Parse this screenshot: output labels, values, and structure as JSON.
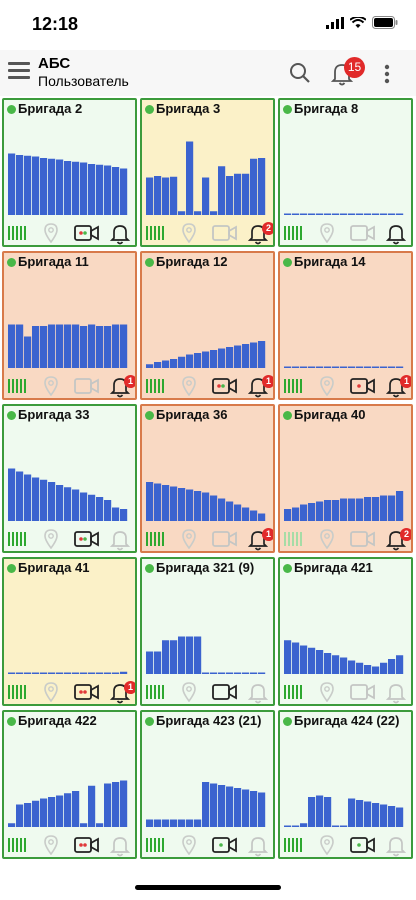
{
  "status_bar": {
    "time": "12:18"
  },
  "app_bar": {
    "title": "АБС",
    "subtitle": "Пользователь",
    "notifications_count": "15",
    "menu_icon": "hamburger-menu-icon",
    "search_icon": "search-icon",
    "bell_icon": "bell-icon",
    "more_icon": "more-vertical-icon"
  },
  "colors": {
    "green_tile_bg": "#effaef",
    "yellow_tile_bg": "#fbf1c8",
    "orange_tile_bg": "#f9d9c3",
    "chart_bar": "#3b63cf",
    "status_online": "#49b848",
    "badge_red": "#e12a2a"
  },
  "tiles": [
    {
      "name": "Бригада 2",
      "state": "green",
      "battery": "full",
      "pin_active": false,
      "camera": "active",
      "camera_light": "red-green",
      "bell_active": true,
      "bell_badge": ""
    },
    {
      "name": "Бригада 3",
      "state": "yellow",
      "battery": "full",
      "pin_active": false,
      "camera": "inactive",
      "camera_light": "none",
      "bell_active": true,
      "bell_badge": "2"
    },
    {
      "name": "Бригада 8",
      "state": "green",
      "battery": "full",
      "pin_active": false,
      "camera": "inactive",
      "camera_light": "none",
      "bell_active": true,
      "bell_badge": ""
    },
    {
      "name": "Бригада 11",
      "state": "orange",
      "battery": "full",
      "pin_active": false,
      "camera": "inactive",
      "camera_light": "none",
      "bell_active": true,
      "bell_badge": "1"
    },
    {
      "name": "Бригада 12",
      "state": "orange",
      "battery": "full",
      "pin_active": false,
      "camera": "active",
      "camera_light": "red-green",
      "bell_active": true,
      "bell_badge": "1"
    },
    {
      "name": "Бригада 14",
      "state": "orange",
      "battery": "full",
      "pin_active": false,
      "camera": "active",
      "camera_light": "red",
      "bell_active": true,
      "bell_badge": "1"
    },
    {
      "name": "Бригада 33",
      "state": "green",
      "battery": "full",
      "pin_active": false,
      "camera": "active",
      "camera_light": "red-green",
      "bell_active": false,
      "bell_badge": ""
    },
    {
      "name": "Бригада 36",
      "state": "orange",
      "battery": "full",
      "pin_active": false,
      "camera": "inactive",
      "camera_light": "none",
      "bell_active": true,
      "bell_badge": "1"
    },
    {
      "name": "Бригада 40",
      "state": "orange",
      "battery": "dim",
      "pin_active": false,
      "camera": "inactive",
      "camera_light": "none",
      "bell_active": true,
      "bell_badge": "2"
    },
    {
      "name": "Бригада 41",
      "state": "yellow",
      "battery": "full",
      "pin_active": false,
      "camera": "active",
      "camera_light": "red-red",
      "bell_active": true,
      "bell_badge": "1"
    },
    {
      "name": "Бригада 321 (9)",
      "state": "green",
      "battery": "full",
      "pin_active": false,
      "camera": "active",
      "camera_light": "none",
      "bell_active": false,
      "bell_badge": ""
    },
    {
      "name": "Бригада 421",
      "state": "green",
      "battery": "full",
      "pin_active": false,
      "camera": "inactive",
      "camera_light": "none",
      "bell_active": false,
      "bell_badge": ""
    },
    {
      "name": "Бригада 422",
      "state": "green",
      "battery": "full",
      "pin_active": false,
      "camera": "active",
      "camera_light": "red-red",
      "bell_active": false,
      "bell_badge": ""
    },
    {
      "name": "Бригада 423 (21)",
      "state": "green",
      "battery": "full",
      "pin_active": false,
      "camera": "active",
      "camera_light": "green",
      "bell_active": false,
      "bell_badge": ""
    },
    {
      "name": "Бригада 424 (22)",
      "state": "green",
      "battery": "full",
      "pin_active": false,
      "camera": "active",
      "camera_light": "green",
      "bell_active": false,
      "bell_badge": ""
    }
  ],
  "chart_data": [
    {
      "type": "bar",
      "values": [
        0.82,
        0.8,
        0.79,
        0.78,
        0.76,
        0.75,
        0.74,
        0.72,
        0.71,
        0.7,
        0.68,
        0.67,
        0.66,
        0.64,
        0.62
      ]
    },
    {
      "type": "bar",
      "values": [
        0.5,
        0.52,
        0.5,
        0.51,
        0.05,
        0.98,
        0.05,
        0.5,
        0.05,
        0.65,
        0.52,
        0.55,
        0.55,
        0.75,
        0.76
      ]
    },
    {
      "type": "bar",
      "values": [
        0,
        0,
        0,
        0,
        0,
        0,
        0.02,
        0.02,
        0.02,
        0.02,
        0.02,
        0.02,
        0.02,
        0.02,
        0.02
      ]
    },
    {
      "type": "bar",
      "values": [
        0.58,
        0.58,
        0.42,
        0.56,
        0.56,
        0.58,
        0.58,
        0.58,
        0.58,
        0.56,
        0.58,
        0.56,
        0.56,
        0.58,
        0.58
      ]
    },
    {
      "type": "bar",
      "values": [
        0.05,
        0.08,
        0.1,
        0.12,
        0.15,
        0.18,
        0.2,
        0.22,
        0.24,
        0.26,
        0.28,
        0.3,
        0.32,
        0.34,
        0.36
      ]
    },
    {
      "type": "bar",
      "values": [
        0.02,
        0.02,
        0.02,
        0.02,
        0.02,
        0.02,
        0.02,
        0.02,
        0.02,
        0.02,
        0.02,
        0.02,
        0.02,
        0.02,
        0.02
      ]
    },
    {
      "type": "bar",
      "values": [
        0.7,
        0.66,
        0.62,
        0.58,
        0.55,
        0.52,
        0.48,
        0.45,
        0.42,
        0.38,
        0.35,
        0.32,
        0.28,
        0.18,
        0.16
      ]
    },
    {
      "type": "bar",
      "values": [
        0.52,
        0.5,
        0.48,
        0.46,
        0.44,
        0.42,
        0.4,
        0.38,
        0.34,
        0.3,
        0.26,
        0.22,
        0.18,
        0.14,
        0.1
      ]
    },
    {
      "type": "bar",
      "values": [
        0.16,
        0.18,
        0.22,
        0.24,
        0.26,
        0.28,
        0.28,
        0.3,
        0.3,
        0.3,
        0.32,
        0.32,
        0.34,
        0.34,
        0.4
      ]
    },
    {
      "type": "bar",
      "values": [
        0.02,
        0.02,
        0.02,
        0.02,
        0.02,
        0.02,
        0.02,
        0.02,
        0.02,
        0.02,
        0.02,
        0.02,
        0.02,
        0.02,
        0.03
      ]
    },
    {
      "type": "bar",
      "values": [
        0.3,
        0.3,
        0.45,
        0.45,
        0.5,
        0.5,
        0.5,
        0.02,
        0.02,
        0.02,
        0.02,
        0.02,
        0.02,
        0.02,
        0.02
      ]
    },
    {
      "type": "bar",
      "values": [
        0.45,
        0.42,
        0.38,
        0.35,
        0.32,
        0.28,
        0.25,
        0.22,
        0.18,
        0.15,
        0.12,
        0.1,
        0.15,
        0.2,
        0.25
      ]
    },
    {
      "type": "bar",
      "values": [
        0.05,
        0.3,
        0.32,
        0.35,
        0.38,
        0.4,
        0.42,
        0.45,
        0.48,
        0.05,
        0.55,
        0.05,
        0.58,
        0.6,
        0.62
      ]
    },
    {
      "type": "bar",
      "values": [
        0.1,
        0.1,
        0.1,
        0.1,
        0.1,
        0.1,
        0.1,
        0.6,
        0.58,
        0.56,
        0.54,
        0.52,
        0.5,
        0.48,
        0.46
      ]
    },
    {
      "type": "bar",
      "values": [
        0.02,
        0.02,
        0.05,
        0.4,
        0.42,
        0.4,
        0.02,
        0.02,
        0.38,
        0.36,
        0.34,
        0.32,
        0.3,
        0.28,
        0.26
      ]
    }
  ]
}
